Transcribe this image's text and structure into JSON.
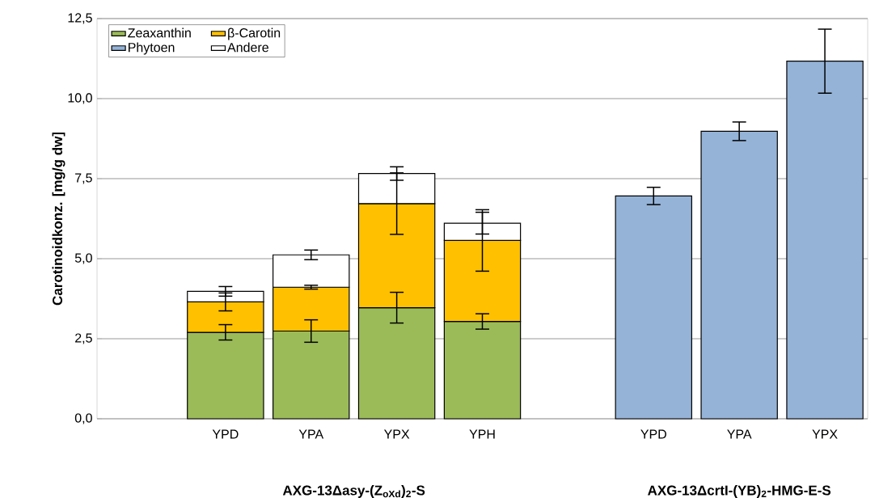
{
  "chart_data": {
    "type": "bar",
    "stacked": true,
    "ylabel": "Carotinoidkonz. [mg/g dw]",
    "categories": [
      null,
      "YPD",
      "YPA",
      "YPX",
      "YPH",
      null,
      "YPD",
      "YPA",
      "YPX"
    ],
    "series": [
      {
        "name": "Zeaxanthin",
        "color": "#9bbb59",
        "values": [
          null,
          2.7,
          2.74,
          3.47,
          3.04,
          null,
          null,
          null,
          null
        ],
        "errors": [
          null,
          0.24,
          0.35,
          0.48,
          0.24,
          null,
          null,
          null,
          null
        ]
      },
      {
        "name": "β-Carotin",
        "color": "#ffc000",
        "values": [
          null,
          0.95,
          1.37,
          3.25,
          2.53,
          null,
          null,
          null,
          null
        ],
        "errors": [
          null,
          0.28,
          0.06,
          0.96,
          0.96,
          null,
          null,
          null,
          null
        ]
      },
      {
        "name": "Phytoen",
        "color": "#95b3d7",
        "values": [
          null,
          null,
          null,
          null,
          null,
          null,
          6.96,
          8.98,
          11.17
        ],
        "errors": [
          null,
          null,
          null,
          null,
          null,
          null,
          0.27,
          0.29,
          1.0
        ]
      },
      {
        "name": "Andere",
        "color": "#ffffff",
        "values": [
          null,
          0.33,
          1.01,
          0.94,
          0.54,
          null,
          null,
          null,
          null
        ],
        "errors": [
          null,
          0.15,
          0.15,
          0.21,
          0.34,
          null,
          null,
          null,
          null
        ]
      }
    ],
    "ylim": [
      0,
      12.5
    ],
    "yticks": [
      {
        "value": 0,
        "label": "0,0"
      },
      {
        "value": 2.5,
        "label": "2,5"
      },
      {
        "value": 5,
        "label": "5,0"
      },
      {
        "value": 7.5,
        "label": "7,5"
      },
      {
        "value": 10,
        "label": "10,0"
      },
      {
        "value": 12.5,
        "label": "12,5"
      }
    ],
    "grid": "y",
    "legend": "top left",
    "annotations": [
      "**AXG-13Δasy-(Z$_{oXd}$)$_{2}$-S**",
      "**AXG-13ΔcrtI-(YB)$_{2}$-HMG-E-S**"
    ]
  }
}
